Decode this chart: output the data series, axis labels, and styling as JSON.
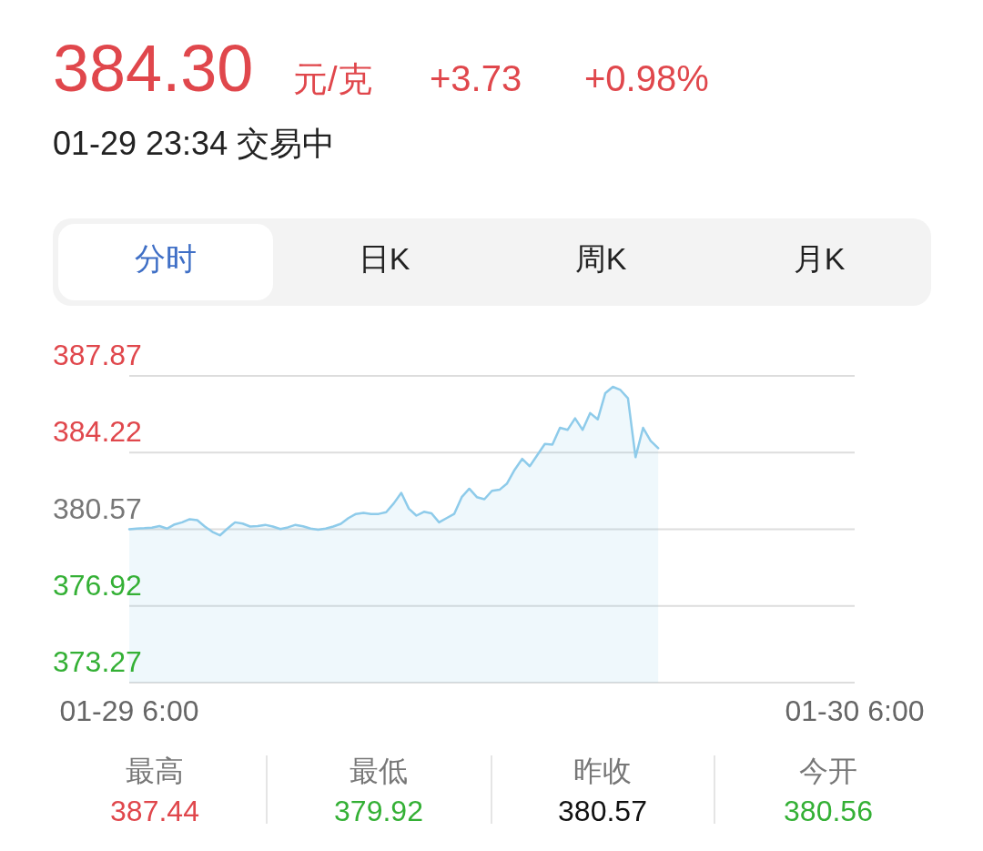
{
  "chart_data": {
    "type": "area",
    "title": "384.30",
    "subtitle": "01-29 23:34 交易中",
    "annotations": [
      "元/克",
      "+3.73",
      "+0.98%",
      "分时",
      "日K",
      "周K",
      "月K",
      "最高",
      "387.44",
      "最低",
      "379.92",
      "昨收",
      "380.57",
      "今开",
      "380.56"
    ],
    "categories": [
      "01-29 6:00",
      null,
      null,
      null,
      null,
      null,
      null,
      null,
      null,
      null,
      null,
      null,
      null,
      null,
      null,
      null,
      null,
      null,
      null,
      null,
      null,
      null,
      null,
      null,
      null,
      null,
      null,
      null,
      null,
      null,
      null,
      null,
      null,
      null,
      null,
      null,
      null,
      null,
      null,
      null,
      null,
      null,
      null,
      null,
      null,
      null,
      null,
      null,
      null,
      null,
      null,
      null,
      null,
      null,
      null,
      null,
      null,
      null,
      null,
      null,
      null,
      null,
      null,
      null,
      null,
      null,
      null,
      null,
      null,
      null,
      null,
      null,
      null,
      null,
      null,
      null,
      null,
      null,
      null,
      null,
      null,
      null,
      null,
      null,
      null,
      null,
      null,
      null,
      null,
      null,
      null,
      null,
      null,
      null,
      null,
      null,
      "01-30 6:00"
    ],
    "series": [
      {
        "color": "#8ecbea",
        "values": [
          380.57,
          380.6,
          380.62,
          380.65,
          380.72,
          380.6,
          380.8,
          380.9,
          381.05,
          381.0,
          380.7,
          380.45,
          380.28,
          380.6,
          380.9,
          380.84,
          380.7,
          380.72,
          380.78,
          380.7,
          380.58,
          380.66,
          380.78,
          380.71,
          380.6,
          380.55,
          380.6,
          380.7,
          380.83,
          381.1,
          381.3,
          381.35,
          381.3,
          381.3,
          381.38,
          381.8,
          382.3,
          381.55,
          381.22,
          381.4,
          381.33,
          380.9,
          381.1,
          381.3,
          382.1,
          382.5,
          382.1,
          382.0,
          382.4,
          382.45,
          382.75,
          383.4,
          383.92,
          383.57,
          384.1,
          384.63,
          384.6,
          385.4,
          385.3,
          385.85,
          385.3,
          386.1,
          385.8,
          387.05,
          387.35,
          387.2,
          386.8,
          384.0,
          385.4,
          384.78,
          384.43,
          null,
          null,
          null,
          null,
          null,
          null,
          null,
          null,
          null,
          null,
          null,
          null,
          null,
          null,
          null,
          null,
          null,
          null,
          null,
          null,
          null,
          null,
          null,
          null,
          null,
          null
        ]
      }
    ],
    "ylim": [
      373.27,
      387.87
    ],
    "yticks": [
      387.87,
      384.22,
      380.57,
      376.92,
      373.27
    ],
    "grid": "y"
  }
}
